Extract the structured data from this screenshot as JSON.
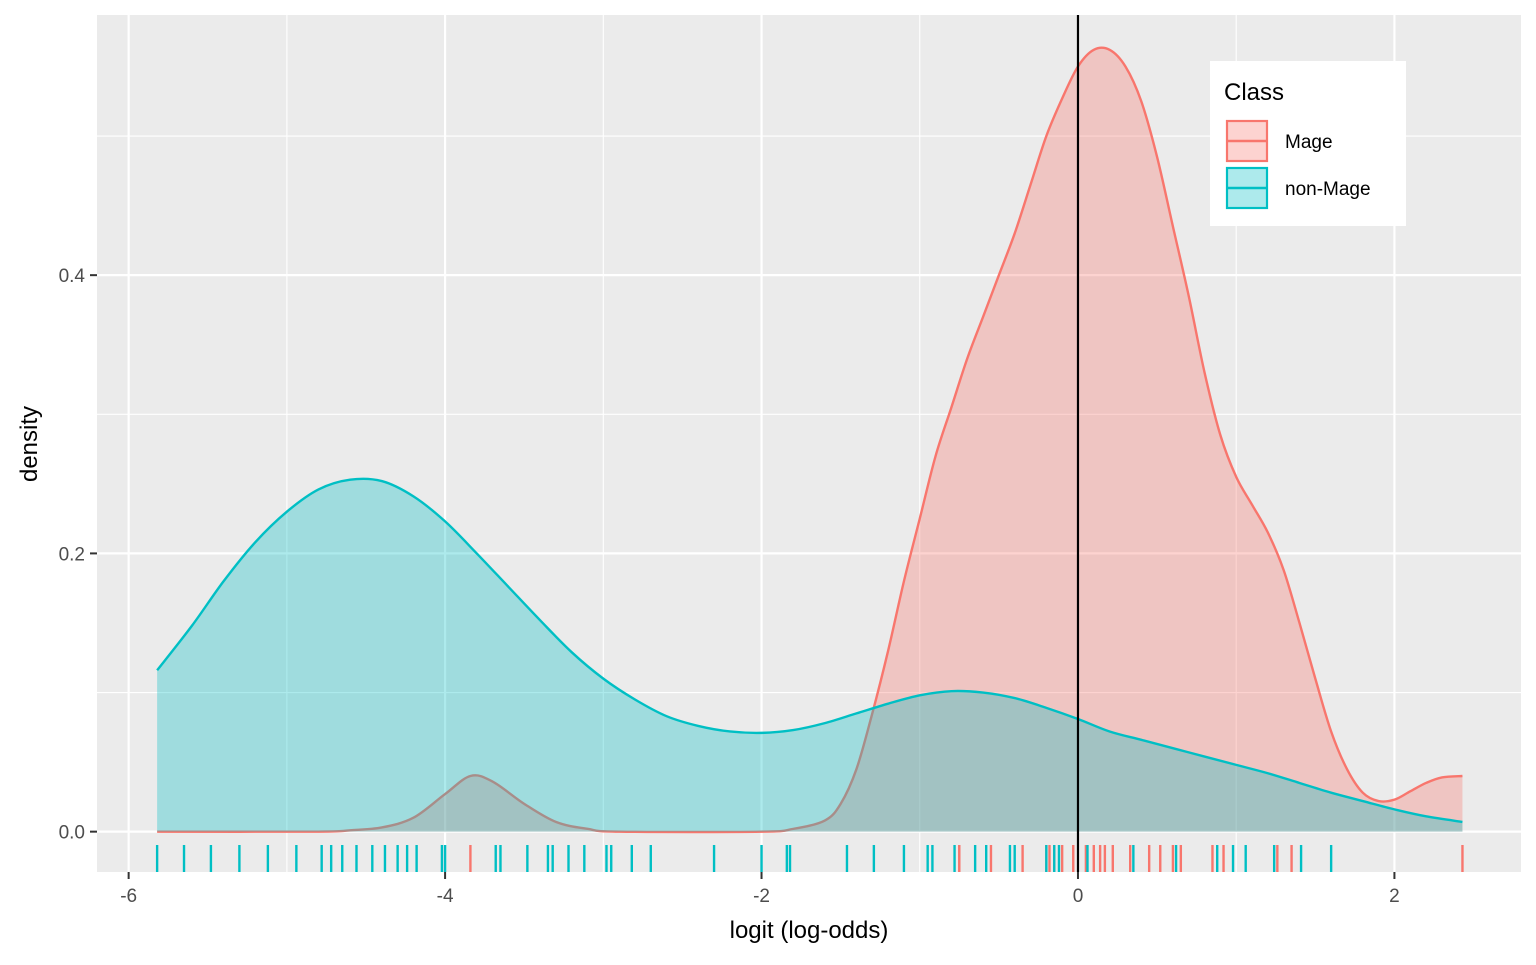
{
  "chart_data": {
    "type": "area",
    "subtype": "density",
    "title": "",
    "xlabel": "logit (log-odds)",
    "ylabel": "density",
    "xlim": [
      -6.2,
      2.8
    ],
    "ylim": [
      -0.029,
      0.587
    ],
    "x_ticks": [
      -6,
      -4,
      -2,
      0,
      2
    ],
    "x_tick_labels": [
      "-6",
      "-4",
      "-2",
      "0",
      "2"
    ],
    "y_ticks": [
      0.0,
      0.2,
      0.4
    ],
    "y_tick_labels": [
      "0.0",
      "0.2",
      "0.4"
    ],
    "grid": true,
    "reference_line": {
      "orientation": "vertical",
      "x": 0,
      "color": "#000000"
    },
    "legend": {
      "title": "Class",
      "position": "top-right",
      "entries": [
        "Mage",
        "non-Mage"
      ]
    },
    "series": [
      {
        "name": "Mage",
        "stroke": "#F8766D",
        "fill": "#F8766D",
        "density_points": [
          [
            -5.82,
            0.0
          ],
          [
            -4.8,
            0.0
          ],
          [
            -4.6,
            0.001
          ],
          [
            -4.4,
            0.003
          ],
          [
            -4.2,
            0.01
          ],
          [
            -4.0,
            0.027
          ],
          [
            -3.84,
            0.04
          ],
          [
            -3.7,
            0.036
          ],
          [
            -3.5,
            0.02
          ],
          [
            -3.3,
            0.007
          ],
          [
            -3.1,
            0.002
          ],
          [
            -2.9,
            0.0
          ],
          [
            -2.0,
            0.0
          ],
          [
            -1.8,
            0.002
          ],
          [
            -1.6,
            0.008
          ],
          [
            -1.5,
            0.02
          ],
          [
            -1.4,
            0.045
          ],
          [
            -1.3,
            0.085
          ],
          [
            -1.2,
            0.13
          ],
          [
            -1.1,
            0.18
          ],
          [
            -1.0,
            0.225
          ],
          [
            -0.9,
            0.27
          ],
          [
            -0.8,
            0.305
          ],
          [
            -0.7,
            0.34
          ],
          [
            -0.6,
            0.37
          ],
          [
            -0.5,
            0.4
          ],
          [
            -0.4,
            0.43
          ],
          [
            -0.3,
            0.465
          ],
          [
            -0.2,
            0.5
          ],
          [
            -0.1,
            0.527
          ],
          [
            0.0,
            0.55
          ],
          [
            0.1,
            0.562
          ],
          [
            0.2,
            0.562
          ],
          [
            0.3,
            0.55
          ],
          [
            0.4,
            0.525
          ],
          [
            0.5,
            0.485
          ],
          [
            0.6,
            0.435
          ],
          [
            0.7,
            0.385
          ],
          [
            0.8,
            0.33
          ],
          [
            0.9,
            0.285
          ],
          [
            1.0,
            0.255
          ],
          [
            1.1,
            0.235
          ],
          [
            1.2,
            0.215
          ],
          [
            1.3,
            0.188
          ],
          [
            1.4,
            0.15
          ],
          [
            1.5,
            0.11
          ],
          [
            1.6,
            0.072
          ],
          [
            1.7,
            0.045
          ],
          [
            1.8,
            0.028
          ],
          [
            1.9,
            0.022
          ],
          [
            2.0,
            0.023
          ],
          [
            2.1,
            0.029
          ],
          [
            2.2,
            0.035
          ],
          [
            2.3,
            0.039
          ],
          [
            2.43,
            0.04
          ]
        ],
        "rug": [
          -3.84,
          -0.75,
          -0.75,
          -0.55,
          -0.35,
          -0.2,
          -0.18,
          -0.15,
          -0.1,
          -0.03,
          0.05,
          0.1,
          0.14,
          0.17,
          0.22,
          0.33,
          0.45,
          0.52,
          0.6,
          0.65,
          0.85,
          0.92,
          1.26,
          1.35,
          2.43
        ]
      },
      {
        "name": "non-Mage",
        "stroke": "#00BFC4",
        "fill": "#00BFC4",
        "density_points": [
          [
            -5.82,
            0.116
          ],
          [
            -5.6,
            0.148
          ],
          [
            -5.4,
            0.18
          ],
          [
            -5.2,
            0.208
          ],
          [
            -5.0,
            0.23
          ],
          [
            -4.8,
            0.246
          ],
          [
            -4.6,
            0.253
          ],
          [
            -4.4,
            0.252
          ],
          [
            -4.2,
            0.241
          ],
          [
            -4.0,
            0.223
          ],
          [
            -3.8,
            0.2
          ],
          [
            -3.6,
            0.176
          ],
          [
            -3.4,
            0.152
          ],
          [
            -3.2,
            0.129
          ],
          [
            -3.0,
            0.11
          ],
          [
            -2.8,
            0.095
          ],
          [
            -2.6,
            0.083
          ],
          [
            -2.4,
            0.076
          ],
          [
            -2.2,
            0.072
          ],
          [
            -2.0,
            0.071
          ],
          [
            -1.8,
            0.073
          ],
          [
            -1.6,
            0.078
          ],
          [
            -1.4,
            0.085
          ],
          [
            -1.2,
            0.092
          ],
          [
            -1.0,
            0.098
          ],
          [
            -0.8,
            0.101
          ],
          [
            -0.6,
            0.1
          ],
          [
            -0.4,
            0.096
          ],
          [
            -0.2,
            0.089
          ],
          [
            0.0,
            0.081
          ],
          [
            0.2,
            0.072
          ],
          [
            0.4,
            0.066
          ],
          [
            0.6,
            0.06
          ],
          [
            0.8,
            0.054
          ],
          [
            1.0,
            0.048
          ],
          [
            1.2,
            0.042
          ],
          [
            1.4,
            0.035
          ],
          [
            1.6,
            0.028
          ],
          [
            1.8,
            0.022
          ],
          [
            2.0,
            0.016
          ],
          [
            2.2,
            0.011
          ],
          [
            2.43,
            0.007
          ]
        ],
        "rug": [
          -5.82,
          -5.65,
          -5.48,
          -5.3,
          -5.12,
          -4.94,
          -4.78,
          -4.72,
          -4.65,
          -4.56,
          -4.46,
          -4.38,
          -4.3,
          -4.24,
          -4.18,
          -4.02,
          -4.0,
          -3.68,
          -3.65,
          -3.48,
          -3.35,
          -3.32,
          -3.22,
          -3.12,
          -2.98,
          -2.95,
          -2.82,
          -2.7,
          -2.3,
          -2.0,
          -1.84,
          -1.82,
          -1.46,
          -1.29,
          -1.1,
          -0.95,
          -0.92,
          -0.78,
          -0.65,
          -0.58,
          -0.43,
          -0.4,
          -0.2,
          -0.15,
          -0.12,
          0.06,
          0.35,
          0.62,
          0.88,
          0.98,
          1.06,
          1.24,
          1.41,
          1.6
        ]
      }
    ]
  }
}
